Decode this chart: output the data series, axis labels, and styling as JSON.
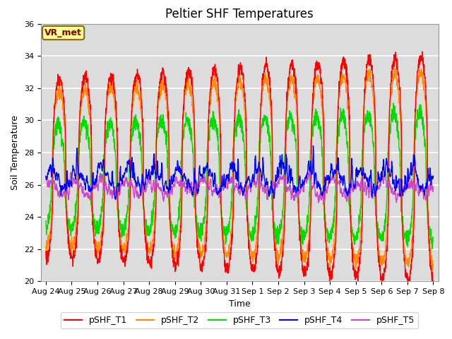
{
  "title": "Peltier SHF Temperatures",
  "xlabel": "Time",
  "ylabel": "Soil Temperature",
  "ylim": [
    20,
    36
  ],
  "xtick_labels": [
    "Aug 24",
    "Aug 25",
    "Aug 26",
    "Aug 27",
    "Aug 28",
    "Aug 29",
    "Aug 30",
    "Aug 31",
    "Sep 1",
    "Sep 2",
    "Sep 3",
    "Sep 4",
    "Sep 5",
    "Sep 6",
    "Sep 7",
    "Sep 8"
  ],
  "annotation_text": "VR_met",
  "annotation_box_facecolor": "#FFFF99",
  "annotation_box_edgecolor": "#8B6914",
  "annotation_text_color": "#8B0000",
  "series_colors": {
    "pSHF_T1": "#FF0000",
    "pSHF_T2": "#FF8C00",
    "pSHF_T3": "#00DD00",
    "pSHF_T4": "#0000FF",
    "pSHF_T5": "#CC44CC"
  },
  "background_color": "#DCDCDC",
  "figure_background": "#FFFFFF",
  "grid_color": "#FFFFFF",
  "title_fontsize": 12,
  "axis_label_fontsize": 9,
  "tick_fontsize": 8,
  "legend_fontsize": 9
}
